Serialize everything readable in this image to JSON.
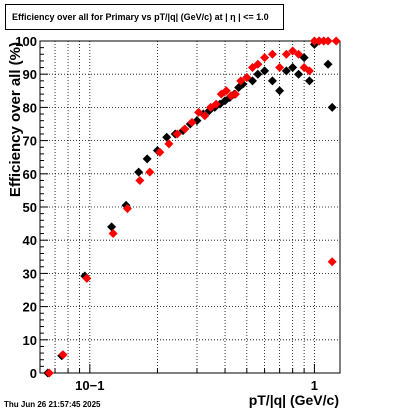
{
  "title": "Efficiency over all for Primary vs pT/|q| (GeV/c) at |  η  | <= 1.0",
  "timestamp": "Thu Jun 26 21:57:45 2025",
  "chart_data": {
    "type": "scatter",
    "title": "Efficiency over all for Primary vs pT/|q| (GeV/c) at |  η  | <= 1.0",
    "xlabel": "pT/|q| (GeV/c)",
    "ylabel": "Efficiency over all (%)",
    "xscale": "log",
    "xlim": [
      0.06,
      1.3
    ],
    "ylim": [
      0,
      100
    ],
    "yticks": [
      0,
      10,
      20,
      30,
      40,
      50,
      60,
      70,
      80,
      90,
      100
    ],
    "xtick_labels": [
      {
        "x": 0.1,
        "label": "10−1"
      },
      {
        "x": 1,
        "label": "1"
      }
    ],
    "grid": true,
    "colors": {
      "series_1": "#000000",
      "series_2": "#ff0000"
    },
    "series": [
      {
        "color": "#000000",
        "points": [
          [
            0.065,
            0
          ],
          [
            0.075,
            5.2
          ],
          [
            0.095,
            29.2
          ],
          [
            0.125,
            44
          ],
          [
            0.145,
            50.5
          ],
          [
            0.165,
            60.5
          ],
          [
            0.18,
            64.5
          ],
          [
            0.2,
            67
          ],
          [
            0.22,
            71
          ],
          [
            0.24,
            72
          ],
          [
            0.26,
            73
          ],
          [
            0.28,
            75
          ],
          [
            0.3,
            76
          ],
          [
            0.32,
            78
          ],
          [
            0.34,
            79
          ],
          [
            0.36,
            80
          ],
          [
            0.38,
            81
          ],
          [
            0.4,
            82
          ],
          [
            0.42,
            83
          ],
          [
            0.44,
            84
          ],
          [
            0.46,
            86
          ],
          [
            0.48,
            87
          ],
          [
            0.5,
            89
          ],
          [
            0.53,
            88
          ],
          [
            0.56,
            90
          ],
          [
            0.6,
            91
          ],
          [
            0.65,
            88
          ],
          [
            0.7,
            85
          ],
          [
            0.75,
            91
          ],
          [
            0.8,
            92
          ],
          [
            0.85,
            90
          ],
          [
            0.9,
            95
          ],
          [
            0.95,
            88
          ],
          [
            1.0,
            99
          ],
          [
            1.05,
            100
          ],
          [
            1.1,
            100
          ],
          [
            1.15,
            93
          ],
          [
            1.2,
            80
          ]
        ]
      },
      {
        "color": "#ff0000",
        "points": [
          [
            0.066,
            0
          ],
          [
            0.076,
            5.5
          ],
          [
            0.097,
            28.5
          ],
          [
            0.127,
            42
          ],
          [
            0.147,
            49.5
          ],
          [
            0.167,
            58
          ],
          [
            0.185,
            60.5
          ],
          [
            0.205,
            66.5
          ],
          [
            0.225,
            69
          ],
          [
            0.245,
            72
          ],
          [
            0.265,
            73.5
          ],
          [
            0.285,
            75.5
          ],
          [
            0.305,
            78.5
          ],
          [
            0.325,
            77.5
          ],
          [
            0.345,
            80
          ],
          [
            0.365,
            81
          ],
          [
            0.385,
            84
          ],
          [
            0.405,
            85
          ],
          [
            0.425,
            83.5
          ],
          [
            0.445,
            84
          ],
          [
            0.47,
            88
          ],
          [
            0.5,
            89
          ],
          [
            0.53,
            92
          ],
          [
            0.56,
            93
          ],
          [
            0.6,
            95
          ],
          [
            0.65,
            96
          ],
          [
            0.7,
            92
          ],
          [
            0.75,
            96
          ],
          [
            0.8,
            97
          ],
          [
            0.85,
            96
          ],
          [
            0.9,
            92
          ],
          [
            0.95,
            91
          ],
          [
            1.0,
            100
          ],
          [
            1.05,
            100
          ],
          [
            1.1,
            100
          ],
          [
            1.15,
            100
          ],
          [
            1.2,
            33.5
          ],
          [
            1.25,
            100
          ]
        ]
      }
    ]
  }
}
